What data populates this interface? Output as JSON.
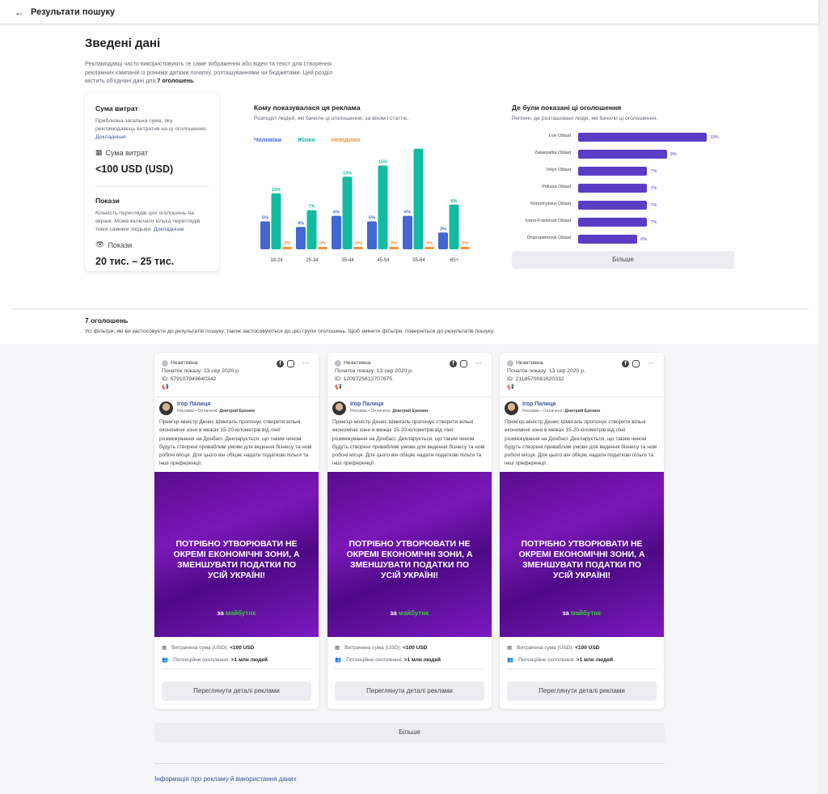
{
  "header": {
    "back_label": "Результати пошуку"
  },
  "summary": {
    "title": "Зведені дані",
    "intro": "Рекламодавці часто використовують те саме зображення або відео та текст для створення рекламних кампаній із різними датами початку, розташуваннями чи бюджетами. Цей розділ містить об'єднані дані для ",
    "intro_count": "7 оголошень",
    "spend": {
      "title": "Сума витрат",
      "desc": "Приблизна загальна сума, яку рекламодавець витратив на ці оголошення.",
      "more": "Докладніше",
      "metric_label": "Сума витрат",
      "value": "<100 USD (USD)"
    },
    "impressions": {
      "title": "Покази",
      "desc": "Кількість переглядів цих оголошень на екрані. Може включати кілька переглядів тими самими людьми.",
      "more": "Докладніше",
      "metric_label": "Покази",
      "value": "20 тис. – 25 тис."
    }
  },
  "chart_data": [
    {
      "type": "bar",
      "title": "Кому показувалася ця реклама",
      "subtitle": "Розподіл людей, які бачили ці оголошення, за віком і статтю.",
      "categories": [
        "18-24",
        "25-34",
        "35-44",
        "45-54",
        "55-64",
        "65+"
      ],
      "series": [
        {
          "name": "Чоловіки",
          "color": "#4267d3",
          "values": [
            5,
            4,
            6,
            5,
            6,
            3
          ]
        },
        {
          "name": "Жінки",
          "color": "#13bba0",
          "values": [
            10,
            7,
            13,
            15,
            18,
            8
          ]
        },
        {
          "name": "Невідомо",
          "color": "#f7923a",
          "values": [
            0,
            0,
            0,
            0,
            0,
            0
          ]
        }
      ],
      "ylim": [
        0,
        18
      ]
    },
    {
      "type": "bar",
      "orientation": "horizontal",
      "title": "Де були показані ці оголошення",
      "subtitle": "Регіони, де розташовані люди, які бачили ці оголошення.",
      "categories": [
        "Lviv Oblast",
        "Zakarpattia Oblast",
        "Volyn Oblast",
        "Poltava Oblast",
        "Khmelnytskyi Oblast",
        "Ivano-Frankivsk Oblast",
        "Dnipropetrovsk Oblast"
      ],
      "values": [
        13,
        9,
        7,
        7,
        7,
        7,
        6
      ],
      "color": "#5b3cc4",
      "more_label": "Більше"
    }
  ],
  "ads": {
    "count_title": "7 оголошень",
    "note": "Усі фільтри, які ви застосовуєте до результатів пошуку, також застосовуються до цієї групи оголошень. Щоб змінити фільтри, поверніться до результатів пошуку.",
    "items": [
      {
        "status": "Неактивна",
        "start": "Початок показу: 13 сер 2020 р.",
        "id": "ID: 579107949640342"
      },
      {
        "status": "Неактивна",
        "start": "Початок показу: 13 сер 2020 р.",
        "id": "ID: 1209725612707675"
      },
      {
        "status": "Неактивна",
        "start": "Початок показу: 13 сер 2020 р.",
        "id": "ID: 2118570081620332"
      }
    ],
    "advertiser": "Ігор Палиця",
    "paid_prefix": "Реклама • Оплачено: ",
    "payer": "Дмитрий Еремин",
    "text": "Прем'єр-міністр Денис Шмигаль пропонує створити вільні економічні зони в межах 15-20-кілометрів від лінії розмежування на Донбасі. Декларується, що таким чином будуть створені привабливі умови для ведення бізнесу та нові робочі місця. Для цього він обіцяє надати податкові пільги та інші преференції.",
    "ellipsis": "...",
    "slogan": "ПОТРІБНО УТВОРЮВАТИ НЕ ОКРЕМІ ЕКОНОМІЧНІ ЗОНИ, А ЗМЕНШУВАТИ ПОДАТКИ ПО УСІЙ УКРАЇНІ!",
    "brand_a": "за ",
    "brand_b": "майбутнє",
    "spent_label": "Витрачена сума (USD): ",
    "spent_value": "<100 USD",
    "reach_label": "Потенційне охоплення: ",
    "reach_value": ">1 млн людей",
    "details_label": "Переглянути деталі реклами",
    "more_label": "Більше"
  },
  "footer_link": "Інформація про рекламу й використання даних"
}
